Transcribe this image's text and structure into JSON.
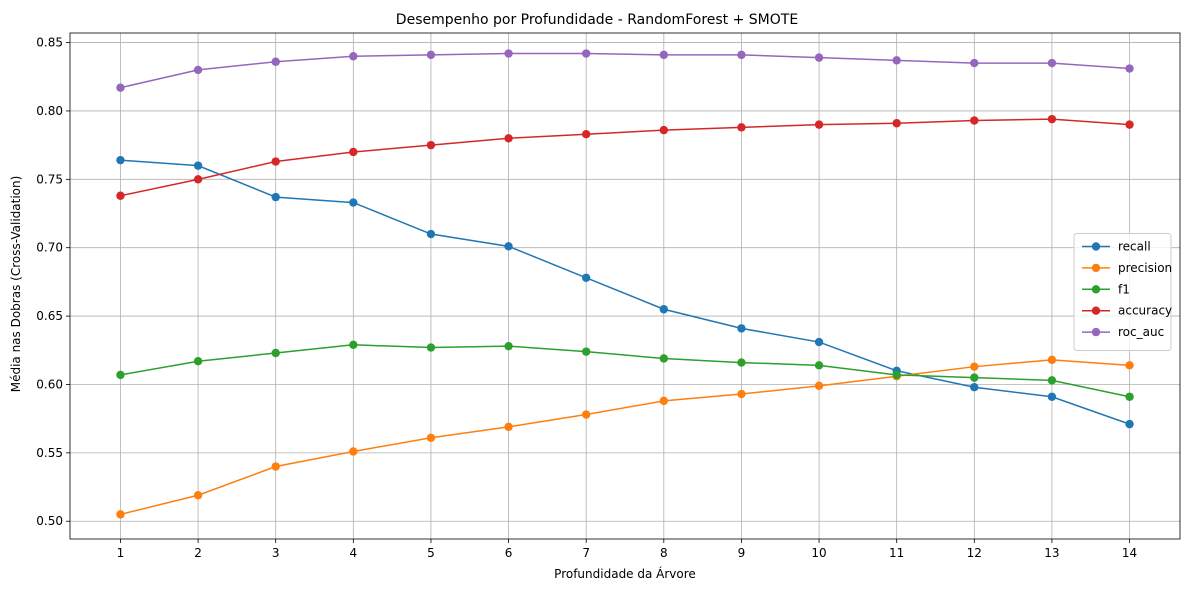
{
  "chart_data": {
    "type": "line",
    "title": "Desempenho por Profundidade - RandomForest + SMOTE",
    "xlabel": "Profundidade da Árvore",
    "ylabel": "Média nas Dobras (Cross-Validation)",
    "x": [
      1,
      2,
      3,
      4,
      5,
      6,
      7,
      8,
      9,
      10,
      11,
      12,
      13,
      14
    ],
    "x_tick_labels": [
      "1",
      "2",
      "3",
      "4",
      "5",
      "6",
      "7",
      "8",
      "9",
      "10",
      "11",
      "12",
      "13",
      "14"
    ],
    "y_ticks": [
      0.5,
      0.55,
      0.6,
      0.65,
      0.7,
      0.75,
      0.8,
      0.85
    ],
    "y_tick_labels": [
      "0.50",
      "0.55",
      "0.60",
      "0.65",
      "0.70",
      "0.75",
      "0.80",
      "0.85"
    ],
    "xlim": [
      0.35,
      14.65
    ],
    "ylim": [
      0.487,
      0.857
    ],
    "grid": true,
    "legend_position": "center-right",
    "series": [
      {
        "name": "recall",
        "color": "#1f77b4",
        "marker": "circle",
        "values": [
          0.764,
          0.76,
          0.737,
          0.733,
          0.71,
          0.701,
          0.678,
          0.655,
          0.641,
          0.631,
          0.61,
          0.598,
          0.591,
          0.571
        ]
      },
      {
        "name": "precision",
        "color": "#ff7f0e",
        "marker": "circle",
        "values": [
          0.505,
          0.519,
          0.54,
          0.551,
          0.561,
          0.569,
          0.578,
          0.588,
          0.593,
          0.599,
          0.606,
          0.613,
          0.618,
          0.614
        ]
      },
      {
        "name": "f1",
        "color": "#2ca02c",
        "marker": "circle",
        "values": [
          0.607,
          0.617,
          0.623,
          0.629,
          0.627,
          0.628,
          0.624,
          0.619,
          0.616,
          0.614,
          0.607,
          0.605,
          0.603,
          0.591
        ]
      },
      {
        "name": "accuracy",
        "color": "#d62728",
        "marker": "circle",
        "values": [
          0.738,
          0.75,
          0.763,
          0.77,
          0.775,
          0.78,
          0.783,
          0.786,
          0.788,
          0.79,
          0.791,
          0.793,
          0.794,
          0.79
        ]
      },
      {
        "name": "roc_auc",
        "color": "#9467bd",
        "marker": "circle",
        "values": [
          0.817,
          0.83,
          0.836,
          0.84,
          0.841,
          0.842,
          0.842,
          0.841,
          0.841,
          0.839,
          0.837,
          0.835,
          0.835,
          0.831
        ]
      }
    ]
  }
}
